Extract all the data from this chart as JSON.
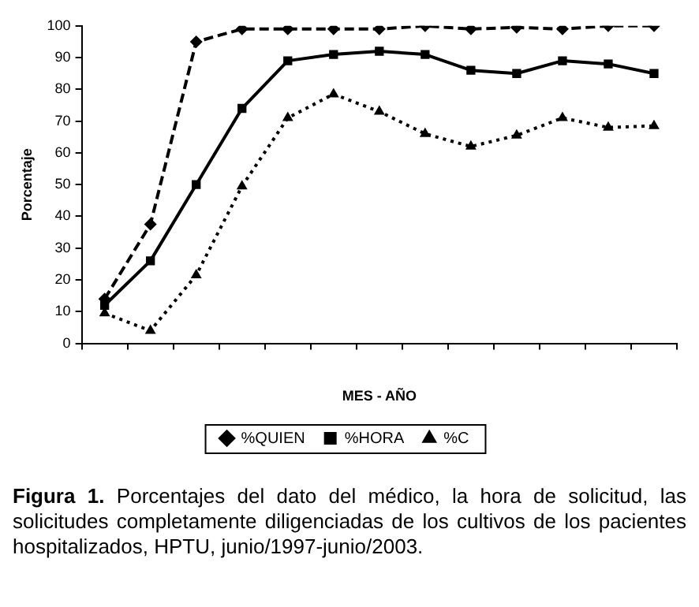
{
  "chart_data": {
    "type": "line",
    "xlabel": "MES - AÑO",
    "ylabel": "Porcentaje",
    "categories": [
      null,
      null,
      null,
      null,
      null,
      null,
      null,
      null,
      null,
      null,
      null,
      null,
      null
    ],
    "ylim": [
      0,
      100
    ],
    "yticks": [
      0,
      10,
      20,
      30,
      40,
      50,
      60,
      70,
      80,
      90,
      100
    ],
    "grid": false,
    "legend": "bottom",
    "series": [
      {
        "name": "%QUIEN",
        "color": "#000000",
        "marker": "diamond",
        "line_style": "dashed",
        "values": [
          14,
          37.5,
          95,
          99,
          99,
          99,
          99,
          100,
          99,
          99.5,
          99,
          100,
          100
        ]
      },
      {
        "name": "%HORA",
        "color": "#000000",
        "marker": "square",
        "line_style": "solid",
        "values": [
          12,
          26,
          50,
          74,
          89,
          91,
          92,
          91,
          86,
          85,
          89,
          88,
          85
        ]
      },
      {
        "name": "%C",
        "color": "#000000",
        "marker": "triangle",
        "line_style": "dotted",
        "values": [
          9.5,
          4,
          21.5,
          49.5,
          71,
          78.5,
          73,
          66,
          62,
          65.5,
          71,
          68,
          68.5
        ]
      }
    ],
    "annotations": [
      "Figura 1. Porcentajes del dato del médico, la hora de solicitud, las solicitudes completamente diligenciadas de los cultivos de los pacientes hospitalizados, HPTU, junio/1997-junio/2003."
    ]
  }
}
